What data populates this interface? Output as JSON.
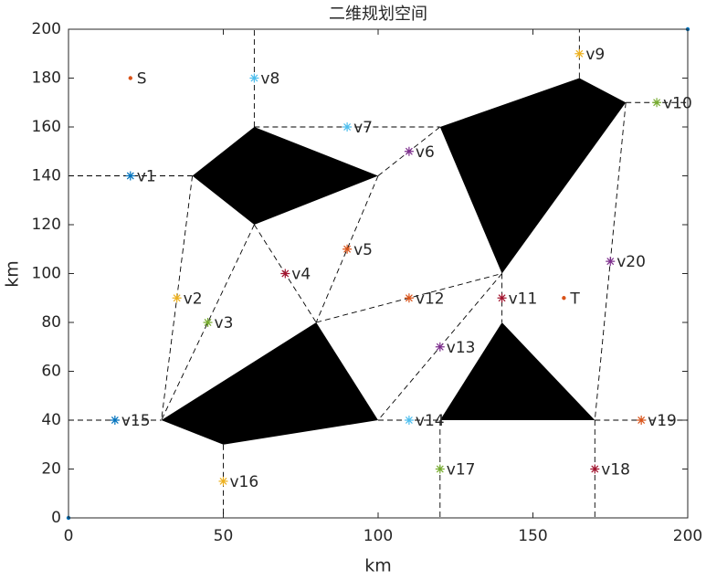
{
  "chart_data": {
    "type": "scatter",
    "title": "二维规划空间",
    "xlabel": "km",
    "ylabel": "km",
    "xlim": [
      0,
      200
    ],
    "ylim": [
      0,
      200
    ],
    "xticks": [
      0,
      50,
      100,
      150,
      200
    ],
    "yticks": [
      0,
      20,
      40,
      60,
      80,
      100,
      120,
      140,
      160,
      180,
      200
    ],
    "points": [
      {
        "label": "S",
        "x": 20,
        "y": 180,
        "color": "#d95319",
        "marker": "."
      },
      {
        "label": "v1",
        "x": 20,
        "y": 140,
        "color": "#0072bd",
        "marker": "*"
      },
      {
        "label": "v2",
        "x": 35,
        "y": 90,
        "color": "#edb120",
        "marker": "*"
      },
      {
        "label": "v3",
        "x": 45,
        "y": 80,
        "color": "#77ac30",
        "marker": "*"
      },
      {
        "label": "v4",
        "x": 70,
        "y": 100,
        "color": "#a2142f",
        "marker": "*"
      },
      {
        "label": "v5",
        "x": 90,
        "y": 110,
        "color": "#d95319",
        "marker": "*"
      },
      {
        "label": "v6",
        "x": 110,
        "y": 150,
        "color": "#7e2f8e",
        "marker": "*"
      },
      {
        "label": "v7",
        "x": 90,
        "y": 160,
        "color": "#4dbeee",
        "marker": "*"
      },
      {
        "label": "v8",
        "x": 60,
        "y": 180,
        "color": "#4dbeee",
        "marker": "*"
      },
      {
        "label": "v9",
        "x": 165,
        "y": 190,
        "color": "#edb120",
        "marker": "*"
      },
      {
        "label": "v10",
        "x": 190,
        "y": 170,
        "color": "#77ac30",
        "marker": "*"
      },
      {
        "label": "v11",
        "x": 140,
        "y": 90,
        "color": "#a2142f",
        "marker": "*"
      },
      {
        "label": "v12",
        "x": 110,
        "y": 90,
        "color": "#d95319",
        "marker": "*"
      },
      {
        "label": "v13",
        "x": 120,
        "y": 70,
        "color": "#7e2f8e",
        "marker": "*"
      },
      {
        "label": "v14",
        "x": 110,
        "y": 40,
        "color": "#4dbeee",
        "marker": "*"
      },
      {
        "label": "v15",
        "x": 15,
        "y": 40,
        "color": "#0072bd",
        "marker": "*"
      },
      {
        "label": "v16",
        "x": 50,
        "y": 15,
        "color": "#edb120",
        "marker": "*"
      },
      {
        "label": "v17",
        "x": 120,
        "y": 20,
        "color": "#77ac30",
        "marker": "*"
      },
      {
        "label": "v18",
        "x": 170,
        "y": 20,
        "color": "#a2142f",
        "marker": "*"
      },
      {
        "label": "v19",
        "x": 185,
        "y": 40,
        "color": "#d95319",
        "marker": "*"
      },
      {
        "label": "v20",
        "x": 175,
        "y": 105,
        "color": "#7e2f8e",
        "marker": "*"
      },
      {
        "label": "T",
        "x": 160,
        "y": 90,
        "color": "#d95319",
        "marker": "."
      }
    ],
    "corner_points": [
      {
        "x": 0,
        "y": 0,
        "color": "#0072bd"
      },
      {
        "x": 200,
        "y": 200,
        "color": "#0072bd"
      }
    ],
    "obstacles": [
      {
        "x": [
          40,
          60,
          100,
          60
        ],
        "y": [
          140,
          160,
          140,
          120
        ],
        "color": "#000000"
      },
      {
        "x": [
          120,
          165,
          180,
          140
        ],
        "y": [
          160,
          180,
          170,
          100
        ],
        "color": "#000000"
      },
      {
        "x": [
          30,
          80,
          100,
          50
        ],
        "y": [
          40,
          80,
          40,
          30
        ],
        "color": "#000000"
      },
      {
        "x": [
          120,
          140,
          170
        ],
        "y": [
          40,
          80,
          40
        ],
        "color": "#000000"
      }
    ],
    "segments": [
      [
        0,
        140,
        40,
        140
      ],
      [
        60,
        160,
        60,
        200
      ],
      [
        60,
        160,
        120,
        160
      ],
      [
        100,
        140,
        120,
        160
      ],
      [
        180,
        170,
        200,
        170
      ],
      [
        165,
        180,
        165,
        200
      ],
      [
        40,
        140,
        30,
        40
      ],
      [
        60,
        120,
        30,
        40
      ],
      [
        60,
        120,
        80,
        80
      ],
      [
        100,
        140,
        80,
        80
      ],
      [
        80,
        80,
        140,
        100
      ],
      [
        140,
        100,
        140,
        80
      ],
      [
        140,
        100,
        100,
        40
      ],
      [
        180,
        170,
        170,
        40
      ],
      [
        0,
        40,
        30,
        40
      ],
      [
        100,
        40,
        120,
        40
      ],
      [
        170,
        40,
        200,
        40
      ],
      [
        50,
        30,
        50,
        0
      ],
      [
        120,
        40,
        120,
        0
      ],
      [
        170,
        40,
        170,
        0
      ]
    ]
  }
}
